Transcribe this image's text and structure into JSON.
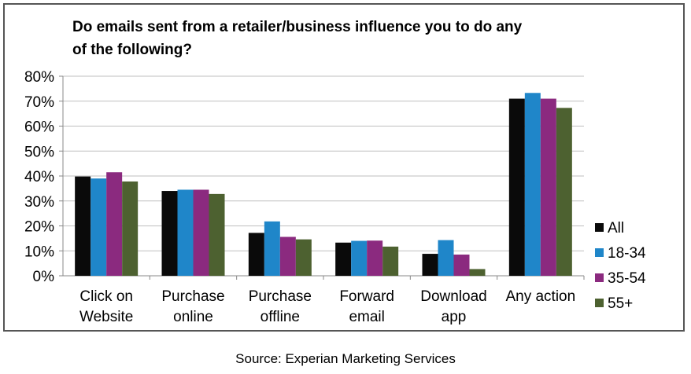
{
  "colors": {
    "All": "#0a0a0a",
    "18-34": "#1f86c9",
    "35-54": "#8b2a7f",
    "55+": "#4d6130",
    "grid": "#bfbfbf",
    "axis": "#888888",
    "frame": "#555555"
  },
  "chart_data": {
    "type": "bar",
    "title_line1": "Do emails sent from a retailer/business influence you to do any",
    "title_line2": "of the following?",
    "categories": [
      [
        "Click on",
        "Website"
      ],
      [
        "Purchase",
        "online"
      ],
      [
        "Purchase",
        "offline"
      ],
      [
        "Forward",
        "email"
      ],
      [
        "Download",
        "app"
      ],
      [
        "Any action"
      ]
    ],
    "series": [
      {
        "name": "All",
        "values": [
          39.8,
          34.0,
          17.2,
          13.3,
          8.8,
          71.0
        ]
      },
      {
        "name": "18-34",
        "values": [
          39.0,
          34.5,
          21.8,
          14.0,
          14.3,
          73.3
        ]
      },
      {
        "name": "35-54",
        "values": [
          41.5,
          34.5,
          15.6,
          14.1,
          8.5,
          71.0
        ]
      },
      {
        "name": "55+",
        "values": [
          37.8,
          32.8,
          14.6,
          11.7,
          2.7,
          67.3
        ]
      }
    ],
    "y_ticks": [
      "0%",
      "10%",
      "20%",
      "30%",
      "40%",
      "50%",
      "60%",
      "70%",
      "80%"
    ],
    "ylim": [
      0,
      80
    ],
    "grid": true,
    "legend_position": "right"
  },
  "source": "Source: Experian Marketing Services"
}
